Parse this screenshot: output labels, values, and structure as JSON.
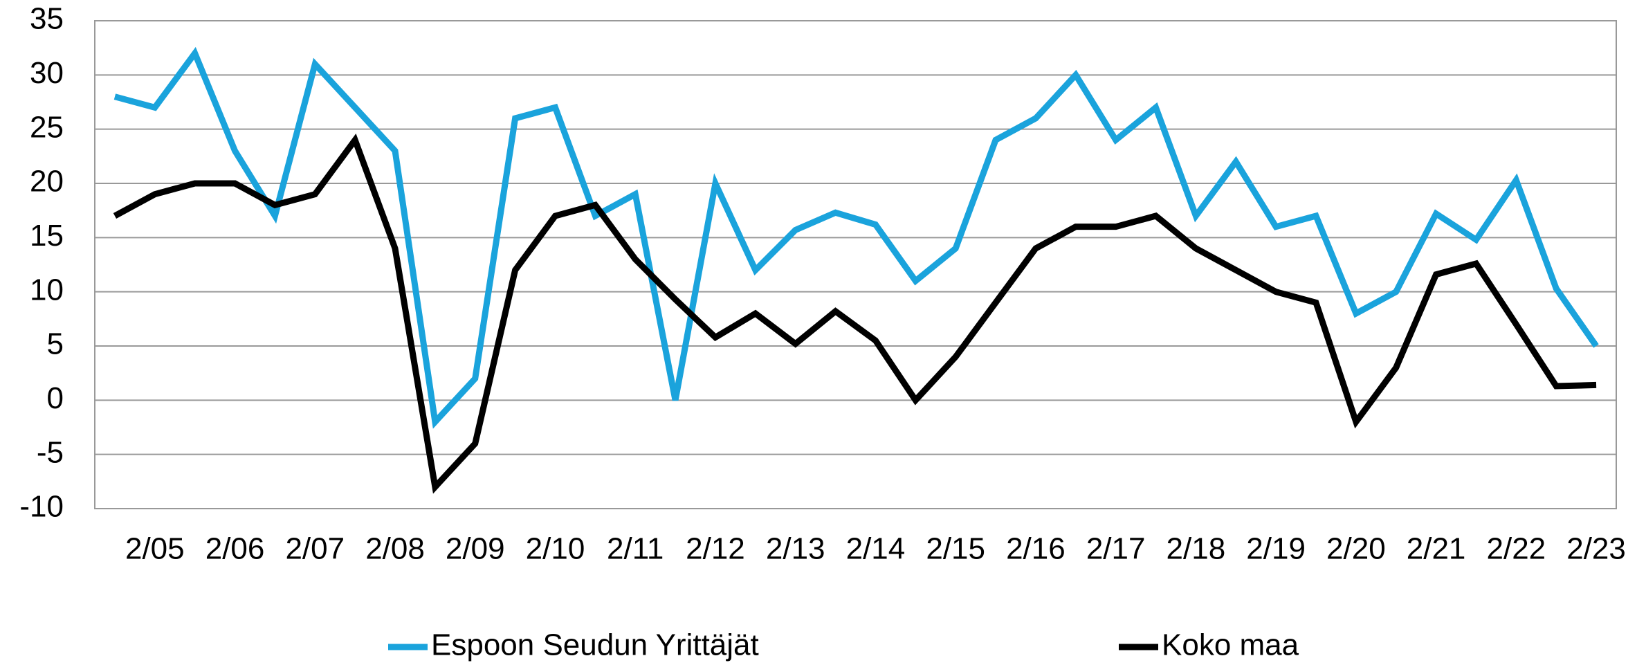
{
  "chart_data": {
    "type": "line",
    "categories": [
      null,
      "2/05",
      null,
      "2/06",
      null,
      "2/07",
      null,
      "2/08",
      null,
      "2/09",
      null,
      "2/10",
      null,
      "2/11",
      null,
      "2/12",
      null,
      "2/13",
      null,
      "2/14",
      null,
      "2/15",
      null,
      "2/16",
      null,
      "2/17",
      null,
      "2/18",
      null,
      "2/19",
      null,
      "2/20",
      null,
      "2/21",
      null,
      "2/22",
      null,
      "2/23"
    ],
    "series": [
      {
        "name": "Espoon Seudun Yrittäjät",
        "color": "#1aa3dc",
        "values": [
          28,
          27,
          32,
          23,
          17,
          31,
          27,
          23,
          -2,
          2,
          26,
          27,
          17,
          19,
          0,
          20,
          12,
          15.7,
          17.3,
          16.2,
          11,
          14,
          24,
          26,
          30,
          24,
          27,
          17,
          22,
          16,
          17,
          8,
          10,
          17.2,
          14.8,
          20.3,
          10.3,
          5
        ]
      },
      {
        "name": "Koko maa",
        "color": "#000000",
        "values": [
          17,
          19,
          20,
          20,
          18,
          19,
          24,
          14,
          -8,
          -4,
          12,
          17,
          18,
          13,
          9.3,
          5.8,
          8,
          5.2,
          8.2,
          5.5,
          0,
          4,
          9,
          14,
          16,
          16,
          17,
          14,
          12,
          10,
          9,
          -2,
          3,
          11.6,
          12.6,
          7,
          1.3,
          1.4
        ]
      }
    ],
    "ylim": [
      -10,
      35
    ],
    "yticks": [
      -10,
      -5,
      0,
      5,
      10,
      15,
      20,
      25,
      30,
      35
    ],
    "grid": true,
    "legend": "bottom"
  }
}
